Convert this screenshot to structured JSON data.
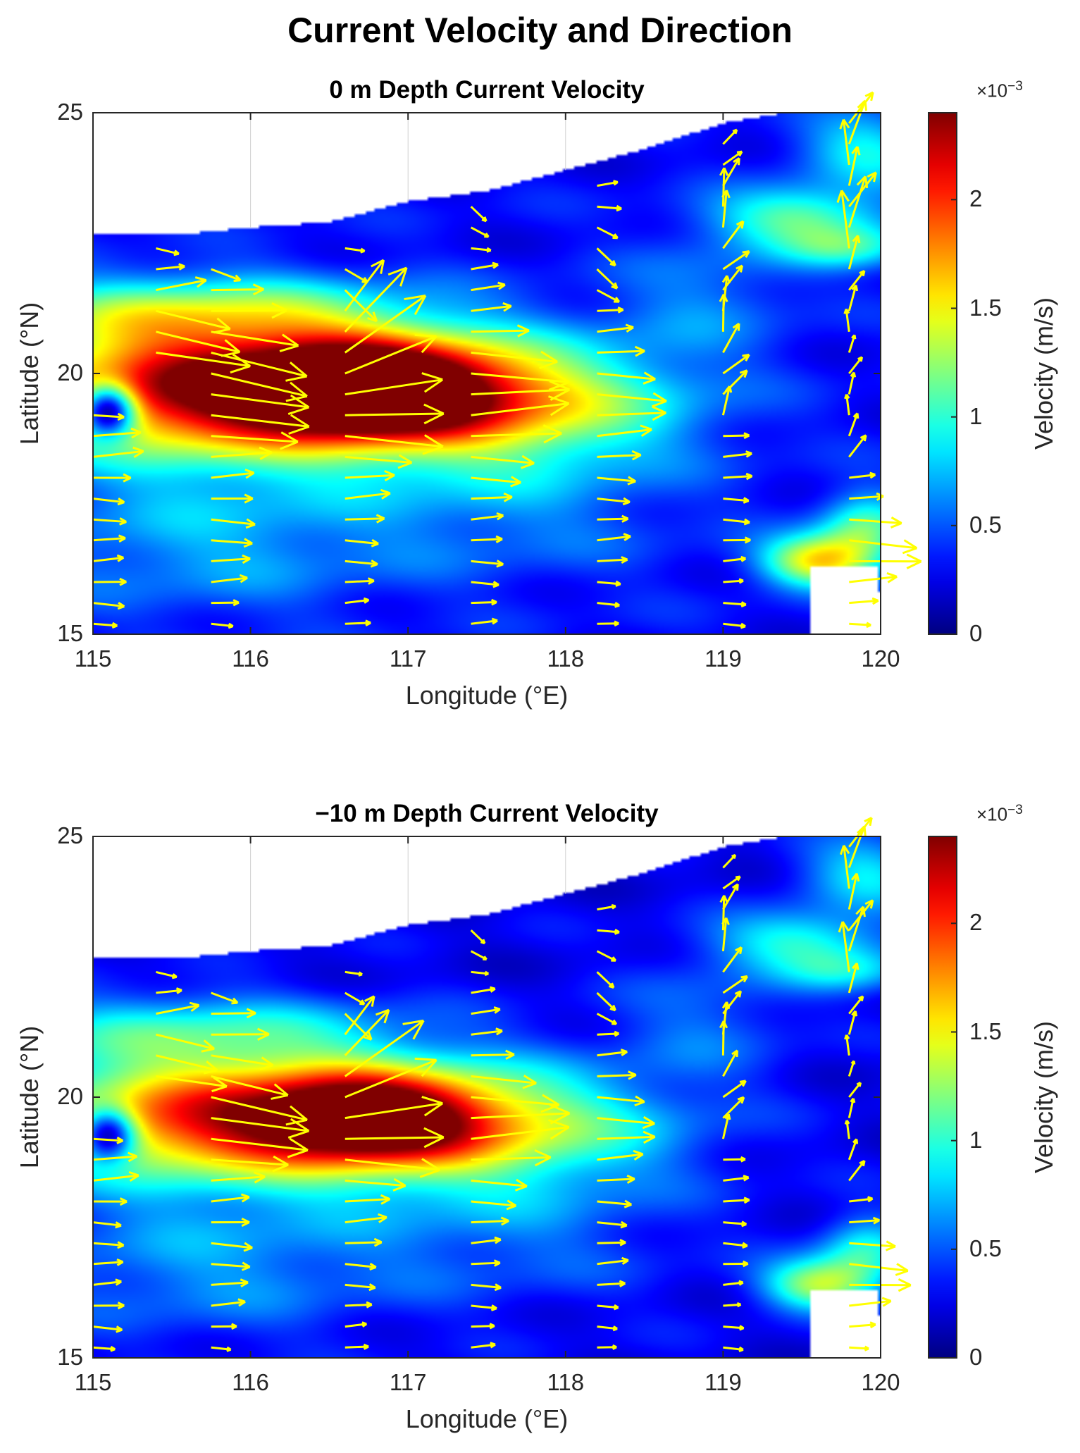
{
  "figure": {
    "title": "Current Velocity and Direction"
  },
  "colors": {
    "arrow": "#ffff00",
    "frame": "#262626",
    "land": "#ffffff",
    "grid": "#d0d0d0"
  },
  "colorbar": {
    "label": "Velocity (m/s)",
    "multiplier_base": "×10",
    "multiplier_exp": "−3",
    "range": [
      0,
      0.0024
    ],
    "ticks": [
      {
        "value": 0,
        "label": "0"
      },
      {
        "value": 0.0005,
        "label": "0.5"
      },
      {
        "value": 0.001,
        "label": "1"
      },
      {
        "value": 0.0015,
        "label": "1.5"
      },
      {
        "value": 0.002,
        "label": "2"
      }
    ],
    "colormap": "jet"
  },
  "chart_data": [
    {
      "type": "heatmap",
      "title": "0 m Depth Current Velocity",
      "xlabel": "Longitude (°E)",
      "ylabel": "Latitude (°N)",
      "xlim": [
        115,
        120
      ],
      "ylim": [
        15,
        25
      ],
      "xticks": [
        {
          "value": 115,
          "label": "115"
        },
        {
          "value": 116,
          "label": "116"
        },
        {
          "value": 117,
          "label": "117"
        },
        {
          "value": 118,
          "label": "118"
        },
        {
          "value": 119,
          "label": "119"
        },
        {
          "value": 120,
          "label": "120"
        }
      ],
      "yticks": [
        {
          "value": 15,
          "label": "15"
        },
        {
          "value": 20,
          "label": "20"
        },
        {
          "value": 25,
          "label": "25"
        }
      ],
      "grid": true,
      "overlay": "quiver",
      "coast_lat": [
        [
          115.0,
          22.7
        ],
        [
          115.5,
          22.65
        ],
        [
          116.0,
          22.8
        ],
        [
          116.5,
          22.9
        ],
        [
          117.0,
          23.3
        ],
        [
          117.5,
          23.5
        ],
        [
          118.0,
          23.9
        ],
        [
          118.5,
          24.3
        ],
        [
          119.0,
          24.8
        ],
        [
          119.4,
          25.0
        ],
        [
          120.0,
          25.0
        ]
      ],
      "velocity_features": [
        {
          "lon": 116.0,
          "lat": 19.7,
          "speed": 0.0023,
          "sx": 1.1,
          "sy": 0.9
        },
        {
          "lon": 116.8,
          "lat": 19.7,
          "speed": 0.0016,
          "sx": 0.5,
          "sy": 0.6
        },
        {
          "lon": 117.8,
          "lat": 19.4,
          "speed": 0.0008,
          "sx": 0.7,
          "sy": 0.8
        },
        {
          "lon": 115.1,
          "lat": 19.3,
          "speed": -0.0016,
          "sx": 0.12,
          "sy": 0.35
        },
        {
          "lon": 115.6,
          "lat": 21.2,
          "speed": 0.0007,
          "sx": 0.9,
          "sy": 0.5
        },
        {
          "lon": 115.7,
          "lat": 16.8,
          "speed": 0.0004,
          "sx": 0.8,
          "sy": 1.0
        },
        {
          "lon": 119.6,
          "lat": 16.4,
          "speed": 0.0012,
          "sx": 0.25,
          "sy": 0.35
        },
        {
          "lon": 119.9,
          "lat": 17.0,
          "speed": 0.0008,
          "sx": 0.2,
          "sy": 0.5
        },
        {
          "lon": 119.5,
          "lat": 23.0,
          "speed": 0.0008,
          "sx": 0.4,
          "sy": 0.4
        },
        {
          "lon": 119.8,
          "lat": 22.4,
          "speed": 0.0006,
          "sx": 0.3,
          "sy": 0.3
        },
        {
          "lon": 119.9,
          "lat": 24.3,
          "speed": 0.0006,
          "sx": 0.3,
          "sy": 0.5
        },
        {
          "lon": 118.9,
          "lat": 21.5,
          "speed": 0.0003,
          "sx": 0.4,
          "sy": 0.8
        },
        {
          "lon": 117.6,
          "lat": 17.5,
          "speed": 0.0003,
          "sx": 0.8,
          "sy": 1.0
        }
      ],
      "base_speed": 0.0003,
      "arrow_columns": [
        {
          "lon": 115.0,
          "lats": [
            15.2,
            15.6,
            16.0,
            16.4,
            16.8,
            17.2,
            17.6,
            18.0,
            18.4,
            18.8,
            19.2
          ]
        },
        {
          "lon": 115.4,
          "lats": [
            20.4,
            20.8,
            21.2,
            21.6,
            22.0,
            22.4
          ]
        },
        {
          "lon": 115.75,
          "lats": [
            15.2,
            15.6,
            16.0,
            16.4,
            16.8,
            17.2,
            17.6,
            18.0,
            18.4,
            18.8,
            19.2,
            19.6,
            20.0,
            20.4,
            20.8,
            21.2,
            21.6,
            22.0
          ]
        },
        {
          "lon": 116.6,
          "lats": [
            15.2,
            15.6,
            16.0,
            16.4,
            16.8,
            17.2,
            17.6,
            18.0,
            18.4,
            18.8,
            19.2,
            19.6,
            20.0,
            20.4,
            20.8,
            21.2,
            21.6,
            22.0,
            22.4
          ]
        },
        {
          "lon": 117.4,
          "lats": [
            15.2,
            15.6,
            16.0,
            16.4,
            16.8,
            17.2,
            17.6,
            18.0,
            18.4,
            18.8,
            19.2,
            19.6,
            20.0,
            20.4,
            20.8,
            21.2,
            21.6,
            22.0,
            22.4,
            22.8,
            23.2
          ]
        },
        {
          "lon": 118.2,
          "lats": [
            15.2,
            15.6,
            16.0,
            16.4,
            16.8,
            17.2,
            17.6,
            18.0,
            18.4,
            18.8,
            19.2,
            19.6,
            20.0,
            20.4,
            20.8,
            21.2,
            21.6,
            22.0,
            22.4,
            22.8,
            23.2,
            23.6,
            24.0
          ]
        },
        {
          "lon": 119.0,
          "lats": [
            15.2,
            15.6,
            16.0,
            16.4,
            16.8,
            17.2,
            17.6,
            18.0,
            18.4,
            18.8,
            19.2,
            19.6,
            20.0,
            20.4,
            20.8,
            21.2,
            21.6,
            22.0,
            22.4,
            22.8,
            23.2,
            23.6,
            24.0,
            24.4,
            24.8
          ]
        },
        {
          "lon": 119.8,
          "lats": [
            15.2,
            15.6,
            16.0,
            16.4,
            16.8,
            17.2,
            17.6,
            18.0,
            18.4,
            18.8,
            19.2,
            19.6,
            20.0,
            20.4,
            20.8,
            21.2,
            21.6,
            22.0,
            22.4,
            22.8,
            23.2,
            23.6,
            24.0,
            24.4,
            24.8
          ]
        }
      ]
    },
    {
      "type": "heatmap",
      "title": "−10 m Depth Current Velocity",
      "xlabel": "Longitude (°E)",
      "ylabel": "Latitude (°N)",
      "xlim": [
        115,
        120
      ],
      "ylim": [
        15,
        25
      ],
      "xticks": [
        {
          "value": 115,
          "label": "115"
        },
        {
          "value": 116,
          "label": "116"
        },
        {
          "value": 117,
          "label": "117"
        },
        {
          "value": 118,
          "label": "118"
        },
        {
          "value": 119,
          "label": "119"
        },
        {
          "value": 120,
          "label": "120"
        }
      ],
      "yticks": [
        {
          "value": 15,
          "label": "15"
        },
        {
          "value": 20,
          "label": "20"
        },
        {
          "value": 25,
          "label": "25"
        }
      ],
      "grid": true,
      "overlay": "quiver",
      "coast_lat": [
        [
          115.0,
          22.7
        ],
        [
          115.5,
          22.65
        ],
        [
          116.0,
          22.8
        ],
        [
          116.5,
          22.9
        ],
        [
          117.0,
          23.3
        ],
        [
          117.5,
          23.5
        ],
        [
          118.0,
          23.9
        ],
        [
          118.5,
          24.3
        ],
        [
          119.0,
          24.8
        ],
        [
          119.4,
          25.0
        ],
        [
          120.0,
          25.0
        ]
      ],
      "velocity_features": [
        {
          "lon": 116.0,
          "lat": 19.6,
          "speed": 0.0019,
          "sx": 1.1,
          "sy": 0.85
        },
        {
          "lon": 116.8,
          "lat": 19.6,
          "speed": 0.0013,
          "sx": 0.5,
          "sy": 0.6
        },
        {
          "lon": 117.8,
          "lat": 19.4,
          "speed": 0.0006,
          "sx": 0.7,
          "sy": 0.8
        },
        {
          "lon": 115.1,
          "lat": 19.3,
          "speed": -0.0013,
          "sx": 0.12,
          "sy": 0.35
        },
        {
          "lon": 115.6,
          "lat": 21.3,
          "speed": 0.0006,
          "sx": 0.9,
          "sy": 0.5
        },
        {
          "lon": 115.7,
          "lat": 16.8,
          "speed": 0.0004,
          "sx": 0.8,
          "sy": 1.0
        },
        {
          "lon": 119.6,
          "lat": 16.4,
          "speed": 0.001,
          "sx": 0.25,
          "sy": 0.35
        },
        {
          "lon": 119.9,
          "lat": 17.0,
          "speed": 0.0007,
          "sx": 0.2,
          "sy": 0.5
        },
        {
          "lon": 119.5,
          "lat": 23.0,
          "speed": 0.0007,
          "sx": 0.4,
          "sy": 0.4
        },
        {
          "lon": 119.8,
          "lat": 22.4,
          "speed": 0.0005,
          "sx": 0.3,
          "sy": 0.3
        },
        {
          "lon": 119.9,
          "lat": 24.3,
          "speed": 0.0006,
          "sx": 0.3,
          "sy": 0.5
        },
        {
          "lon": 118.9,
          "lat": 21.5,
          "speed": 0.0003,
          "sx": 0.4,
          "sy": 0.8
        },
        {
          "lon": 117.6,
          "lat": 17.5,
          "speed": 0.0003,
          "sx": 0.8,
          "sy": 1.0
        }
      ],
      "base_speed": 0.00025,
      "arrow_columns": [
        {
          "lon": 115.0,
          "lats": [
            15.2,
            15.6,
            16.0,
            16.4,
            16.8,
            17.2,
            17.6,
            18.0,
            18.4,
            18.8,
            19.2
          ]
        },
        {
          "lon": 115.4,
          "lats": [
            20.4,
            20.8,
            21.2,
            21.6,
            22.0,
            22.4
          ]
        },
        {
          "lon": 115.75,
          "lats": [
            15.2,
            15.6,
            16.0,
            16.4,
            16.8,
            17.2,
            17.6,
            18.0,
            18.4,
            18.8,
            19.2,
            19.6,
            20.0,
            20.4,
            20.8,
            21.2,
            21.6,
            22.0
          ]
        },
        {
          "lon": 116.6,
          "lats": [
            15.2,
            15.6,
            16.0,
            16.4,
            16.8,
            17.2,
            17.6,
            18.0,
            18.4,
            18.8,
            19.2,
            19.6,
            20.0,
            20.4,
            20.8,
            21.2,
            21.6,
            22.0,
            22.4
          ]
        },
        {
          "lon": 117.4,
          "lats": [
            15.2,
            15.6,
            16.0,
            16.4,
            16.8,
            17.2,
            17.6,
            18.0,
            18.4,
            18.8,
            19.2,
            19.6,
            20.0,
            20.4,
            20.8,
            21.2,
            21.6,
            22.0,
            22.4,
            22.8,
            23.2
          ]
        },
        {
          "lon": 118.2,
          "lats": [
            15.2,
            15.6,
            16.0,
            16.4,
            16.8,
            17.2,
            17.6,
            18.0,
            18.4,
            18.8,
            19.2,
            19.6,
            20.0,
            20.4,
            20.8,
            21.2,
            21.6,
            22.0,
            22.4,
            22.8,
            23.2,
            23.6,
            24.0
          ]
        },
        {
          "lon": 119.0,
          "lats": [
            15.2,
            15.6,
            16.0,
            16.4,
            16.8,
            17.2,
            17.6,
            18.0,
            18.4,
            18.8,
            19.2,
            19.6,
            20.0,
            20.4,
            20.8,
            21.2,
            21.6,
            22.0,
            22.4,
            22.8,
            23.2,
            23.6,
            24.0,
            24.4,
            24.8
          ]
        },
        {
          "lon": 119.8,
          "lats": [
            15.2,
            15.6,
            16.0,
            16.4,
            16.8,
            17.2,
            17.6,
            18.0,
            18.4,
            18.8,
            19.2,
            19.6,
            20.0,
            20.4,
            20.8,
            21.2,
            21.6,
            22.0,
            22.4,
            22.8,
            23.2,
            23.6,
            24.0,
            24.4,
            24.8
          ]
        }
      ]
    }
  ]
}
